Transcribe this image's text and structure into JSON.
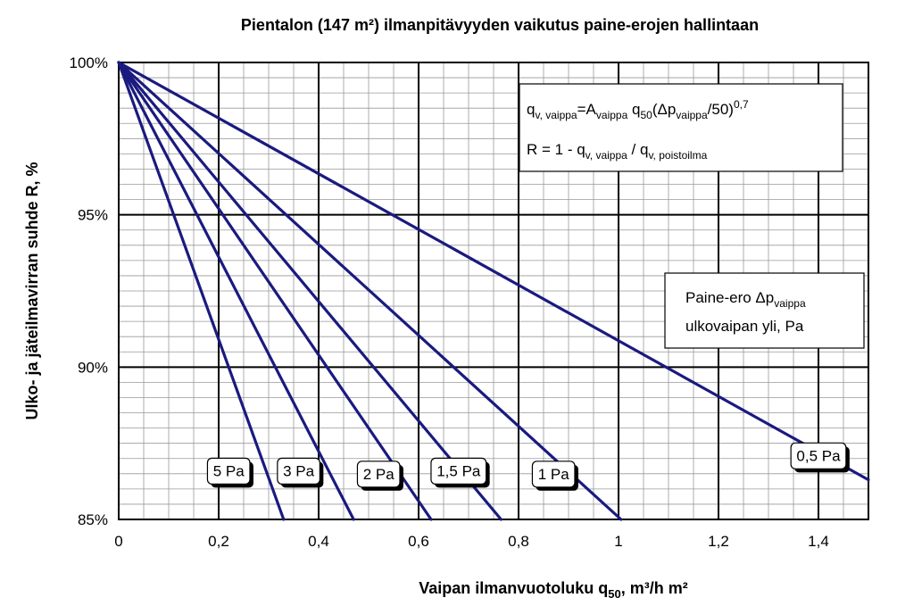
{
  "chart_data": {
    "type": "line",
    "title": "Pientalon (147 m²) ilmanpitävyyden vaikutus paine-erojen hallintaan",
    "xlabel_main": "Vaipan ilmanvuotoluku q",
    "xlabel_sub": "50",
    "xlabel_unit": ", m³/h m²",
    "ylabel": "Ulko- ja jäteilmavirran suhde R, %",
    "xlim": [
      0,
      1.5
    ],
    "ylim": [
      85,
      100
    ],
    "x_ticks": [
      {
        "v": 0,
        "label": "0"
      },
      {
        "v": 0.2,
        "label": "0,2"
      },
      {
        "v": 0.4,
        "label": "0,4"
      },
      {
        "v": 0.6,
        "label": "0,6"
      },
      {
        "v": 0.8,
        "label": "0,8"
      },
      {
        "v": 1.0,
        "label": "1"
      },
      {
        "v": 1.2,
        "label": "1,2"
      },
      {
        "v": 1.4,
        "label": "1,4"
      }
    ],
    "y_ticks": [
      {
        "v": 85,
        "label": "85%"
      },
      {
        "v": 90,
        "label": "90%"
      },
      {
        "v": 95,
        "label": "95%"
      },
      {
        "v": 100,
        "label": "100%"
      }
    ],
    "grid": true,
    "minor_grid_x_step": 0.05,
    "minor_grid_y_step": 0.5,
    "series": [
      {
        "name": "0,5 Pa",
        "x": [
          0,
          1.5
        ],
        "y": [
          100,
          86.3
        ],
        "label_at": [
          1.4,
          87.1
        ]
      },
      {
        "name": "1 Pa",
        "x": [
          0,
          1.005
        ],
        "y": [
          100,
          85
        ],
        "label_at": [
          0.87,
          86.5
        ]
      },
      {
        "name": "1,5 Pa",
        "x": [
          0,
          0.765
        ],
        "y": [
          100,
          85
        ],
        "label_at": [
          0.68,
          86.6
        ]
      },
      {
        "name": "2 Pa",
        "x": [
          0,
          0.625
        ],
        "y": [
          100,
          85
        ],
        "label_at": [
          0.52,
          86.5
        ]
      },
      {
        "name": "3 Pa",
        "x": [
          0,
          0.47
        ],
        "y": [
          100,
          85
        ],
        "label_at": [
          0.36,
          86.6
        ]
      },
      {
        "name": "5 Pa",
        "x": [
          0,
          0.33
        ],
        "y": [
          100,
          85
        ],
        "label_at": [
          0.22,
          86.6
        ]
      }
    ],
    "line_color": "#1a1a80",
    "formula_box": {
      "line1": {
        "q": "q",
        "q_sub": "v, vaippa",
        "eq": "=A",
        "a_sub": "vaippa",
        "q50": " q",
        "q50_sub": "50",
        "paren": "(Δp",
        "dp_sub": "vaippa",
        "tail": "/50)",
        "exp": "0,7"
      },
      "line2": {
        "r": "R = 1 - q",
        "sub1": "v, vaippa",
        "slash": " / q",
        "sub2": "v, poistoilma"
      }
    },
    "legend_box": {
      "line1": "Paine-ero Δp",
      "line1_sub": "vaippa",
      "line2": "ulkovaipan yli, Pa"
    }
  }
}
